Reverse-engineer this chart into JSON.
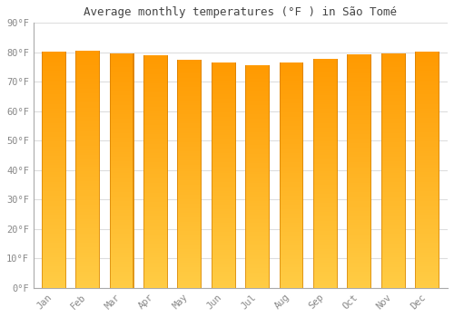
{
  "title": "Average monthly temperatures (°F ) in São Tomé",
  "months": [
    "Jan",
    "Feb",
    "Mar",
    "Apr",
    "May",
    "Jun",
    "Jul",
    "Aug",
    "Sep",
    "Oct",
    "Nov",
    "Dec"
  ],
  "values": [
    80.1,
    80.6,
    79.7,
    79.0,
    77.5,
    76.5,
    75.7,
    76.5,
    77.9,
    79.3,
    79.7,
    80.1
  ],
  "ylim": [
    0,
    90
  ],
  "yticks": [
    0,
    10,
    20,
    30,
    40,
    50,
    60,
    70,
    80,
    90
  ],
  "bar_color_main": "#FFA500",
  "bar_color_light": "#FFCC44",
  "bar_color_dark": "#F08000",
  "bar_edge_color": "#CC7700",
  "background_color": "#FFFFFF",
  "grid_color": "#DDDDDD",
  "title_fontsize": 9,
  "tick_fontsize": 7.5,
  "tick_label_color": "#888888",
  "title_color": "#444444",
  "bar_width": 0.72
}
